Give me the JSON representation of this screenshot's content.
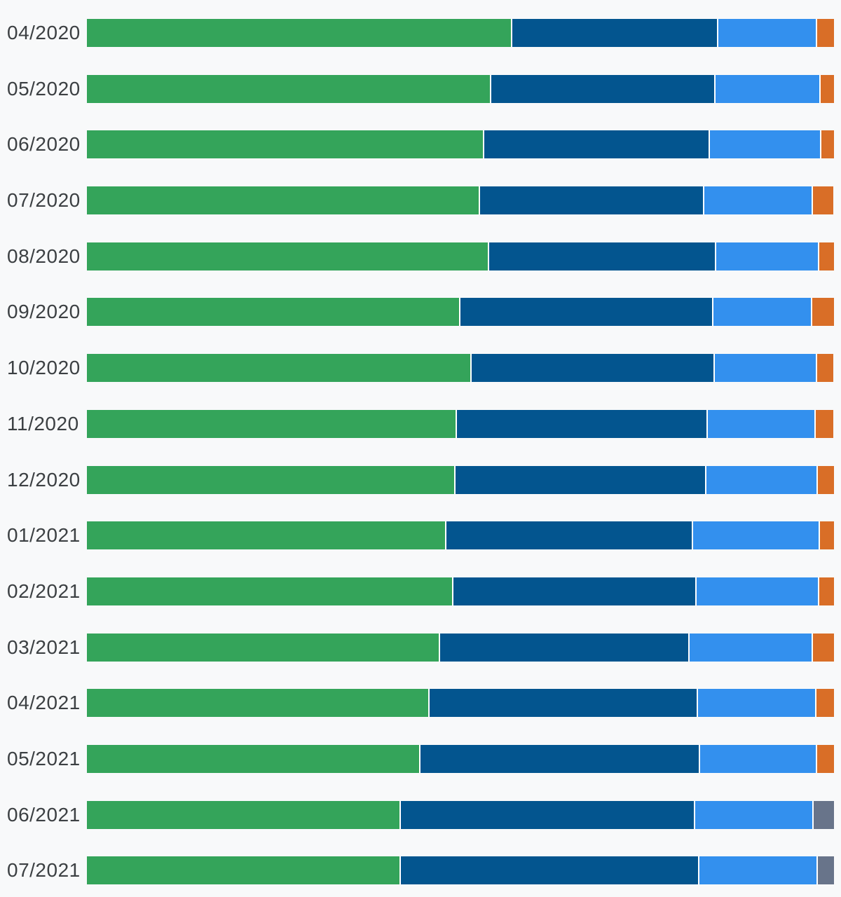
{
  "background": "#f8f9fa",
  "label_color": "#3c4043",
  "colors": {
    "green": "#34a45a",
    "dark_blue": "#03558f",
    "light_blue": "#3390ee",
    "orange": "#d96e27",
    "gray": "#68748a"
  },
  "chart_data": {
    "type": "bar",
    "orientation": "horizontal-stacked",
    "unit": "percent-of-row",
    "title": "",
    "xlabel": "",
    "ylabel": "",
    "legend": "none",
    "grid": false,
    "categories": [
      "04/2020",
      "05/2020",
      "06/2020",
      "07/2020",
      "08/2020",
      "09/2020",
      "10/2020",
      "11/2020",
      "12/2020",
      "01/2021",
      "02/2021",
      "03/2021",
      "04/2021",
      "05/2021",
      "06/2021",
      "07/2021"
    ],
    "series": [
      {
        "name": "segment-1-green",
        "color_key": "green",
        "values": [
          56.8,
          53.9,
          53.0,
          52.4,
          53.7,
          49.8,
          51.3,
          49.3,
          49.2,
          47.9,
          48.9,
          47.1,
          45.7,
          44.5,
          41.8,
          41.8
        ]
      },
      {
        "name": "segment-2-dark-blue",
        "color_key": "dark_blue",
        "values": [
          27.5,
          30.1,
          30.2,
          30.1,
          30.4,
          33.9,
          32.6,
          33.6,
          33.5,
          33.1,
          32.6,
          33.4,
          35.9,
          37.4,
          39.4,
          40.0
        ]
      },
      {
        "name": "segment-3-light-blue",
        "color_key": "light_blue",
        "values": [
          13.3,
          14.0,
          14.9,
          14.5,
          13.8,
          13.2,
          13.7,
          14.5,
          15.0,
          16.9,
          16.4,
          16.5,
          15.9,
          15.7,
          15.9,
          15.9
        ]
      },
      {
        "name": "segment-4-accent",
        "color_key": "orange",
        "color_overrides": {
          "14": "gray",
          "15": "gray"
        },
        "values": [
          2.4,
          2.0,
          1.9,
          2.9,
          2.2,
          3.1,
          2.3,
          2.5,
          2.3,
          2.1,
          2.2,
          3.0,
          2.5,
          2.4,
          2.9,
          2.3
        ]
      }
    ]
  }
}
